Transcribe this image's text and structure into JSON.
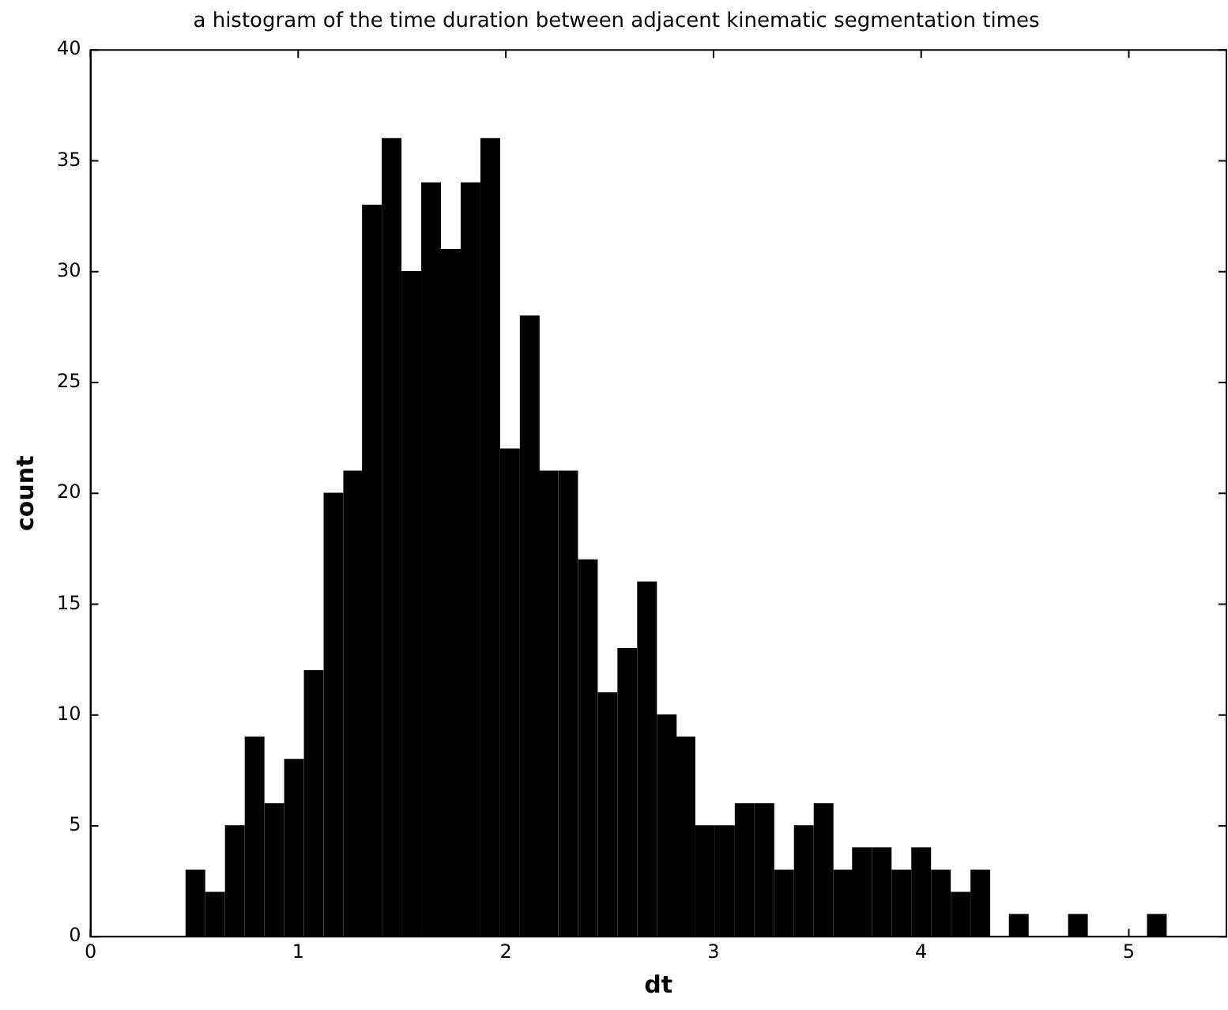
{
  "chart_data": {
    "type": "histogram",
    "title": "a histogram of the time duration between adjacent kinematic segmentation times",
    "xlabel": "dt",
    "ylabel": "count",
    "bins": [
      0.46,
      0.55,
      0.65,
      0.74,
      0.84,
      0.93,
      1.03,
      1.12,
      1.22,
      1.31,
      1.4,
      1.5,
      1.59,
      1.69,
      1.78,
      1.88,
      1.97,
      2.07,
      2.16,
      2.25,
      2.35,
      2.44,
      2.54,
      2.63,
      2.73,
      2.82,
      2.91,
      3.01,
      3.1,
      3.2,
      3.29,
      3.39,
      3.48,
      3.58,
      3.67,
      3.76,
      3.86,
      3.95,
      4.05,
      4.14,
      4.24,
      4.33,
      4.42,
      4.52,
      4.61,
      4.71,
      4.8,
      4.9,
      4.99,
      5.09,
      5.18
    ],
    "values": [
      3,
      2,
      5,
      9,
      6,
      8,
      12,
      20,
      21,
      33,
      36,
      30,
      34,
      31,
      34,
      36,
      22,
      28,
      21,
      21,
      17,
      11,
      13,
      16,
      10,
      9,
      5,
      5,
      6,
      6,
      3,
      5,
      6,
      3,
      4,
      4,
      3,
      4,
      3,
      2,
      3,
      0,
      1,
      0,
      0,
      1,
      0,
      0,
      0,
      1
    ],
    "color": "#000000",
    "xlim": [
      0,
      5.47
    ],
    "xticks": [
      0,
      1,
      2,
      3,
      4,
      5
    ],
    "ylim": [
      0,
      40
    ],
    "yticks": [
      0,
      5,
      10,
      15,
      20,
      25,
      30,
      35,
      40
    ],
    "grid": false,
    "legend": false
  }
}
